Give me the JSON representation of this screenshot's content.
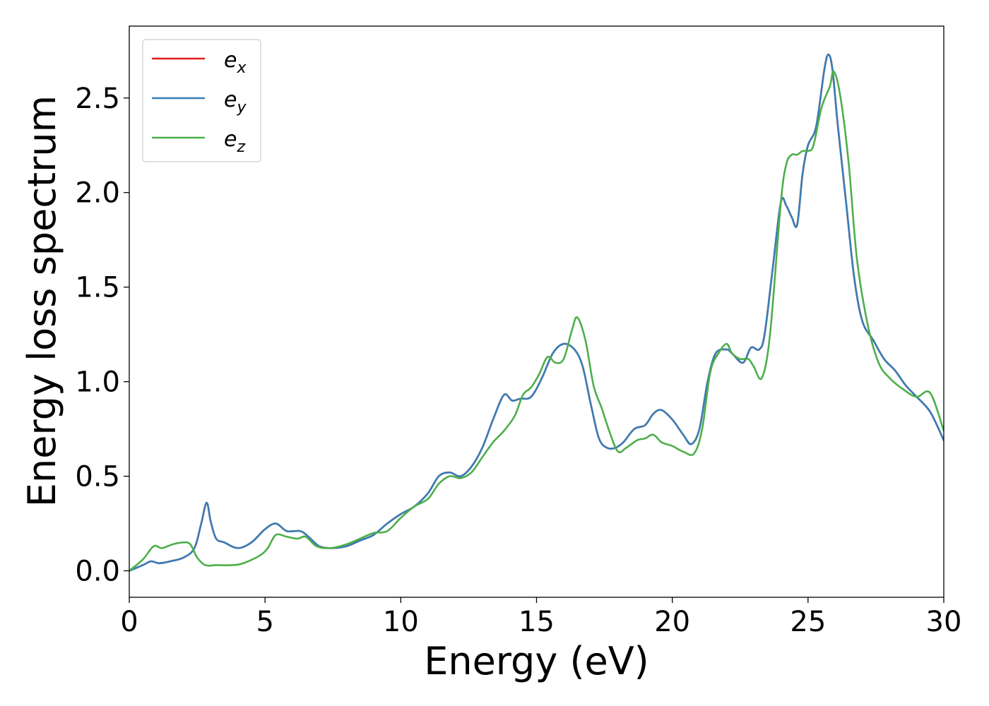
{
  "chart_data": {
    "type": "line",
    "xlabel": "Energy (eV)",
    "ylabel": "Energy loss spectrum",
    "xlim": [
      0,
      30
    ],
    "ylim": [
      -0.14,
      2.88
    ],
    "xticks": [
      0,
      5,
      10,
      15,
      20,
      25,
      30
    ],
    "yticks": [
      0.0,
      0.5,
      1.0,
      1.5,
      2.0,
      2.5
    ],
    "xtick_labels": [
      "0",
      "5",
      "10",
      "15",
      "20",
      "25",
      "30"
    ],
    "ytick_labels": [
      "0.0",
      "0.5",
      "1.0",
      "1.5",
      "2.0",
      "2.5"
    ],
    "grid": false,
    "legend_position": "upper-left",
    "series": [
      {
        "name": "e",
        "sub": "x",
        "color": "#e41a1c",
        "x": [
          0,
          0.5,
          0.8,
          1.1,
          1.5,
          2.0,
          2.4,
          2.65,
          2.85,
          3.0,
          3.2,
          3.5,
          4.0,
          4.5,
          5.0,
          5.4,
          5.8,
          6.3,
          6.6,
          7.0,
          7.5,
          8.0,
          8.5,
          9.0,
          9.5,
          10.0,
          10.5,
          11.0,
          11.4,
          11.8,
          12.2,
          12.6,
          13.0,
          13.4,
          13.8,
          14.1,
          14.4,
          14.8,
          15.2,
          15.6,
          16.0,
          16.4,
          16.7,
          17.0,
          17.3,
          17.6,
          17.9,
          18.2,
          18.6,
          19.0,
          19.3,
          19.6,
          20.0,
          20.4,
          20.7,
          21.0,
          21.3,
          21.6,
          22.0,
          22.2,
          22.6,
          22.9,
          23.2,
          23.4,
          23.7,
          24.0,
          24.2,
          24.4,
          24.6,
          24.8,
          25.0,
          25.3,
          25.6,
          25.75,
          25.9,
          26.1,
          26.4,
          26.7,
          27.0,
          27.4,
          27.8,
          28.2,
          28.6,
          29.0,
          29.5,
          30.0
        ],
        "y": [
          0.0,
          0.03,
          0.05,
          0.04,
          0.05,
          0.07,
          0.12,
          0.25,
          0.36,
          0.26,
          0.17,
          0.15,
          0.12,
          0.15,
          0.22,
          0.25,
          0.21,
          0.21,
          0.18,
          0.13,
          0.12,
          0.13,
          0.16,
          0.19,
          0.25,
          0.3,
          0.34,
          0.41,
          0.5,
          0.52,
          0.5,
          0.55,
          0.65,
          0.8,
          0.93,
          0.9,
          0.91,
          0.92,
          1.02,
          1.15,
          1.2,
          1.17,
          1.08,
          0.88,
          0.7,
          0.65,
          0.65,
          0.68,
          0.75,
          0.77,
          0.83,
          0.85,
          0.8,
          0.72,
          0.67,
          0.75,
          1.0,
          1.15,
          1.17,
          1.15,
          1.1,
          1.18,
          1.17,
          1.25,
          1.6,
          1.95,
          1.93,
          1.87,
          1.83,
          2.1,
          2.25,
          2.35,
          2.65,
          2.73,
          2.65,
          2.35,
          1.95,
          1.55,
          1.32,
          1.22,
          1.12,
          1.06,
          0.98,
          0.92,
          0.84,
          0.69
        ]
      },
      {
        "name": "e",
        "sub": "y",
        "color": "#377eb8",
        "x": [
          0,
          0.5,
          0.8,
          1.1,
          1.5,
          2.0,
          2.4,
          2.65,
          2.85,
          3.0,
          3.2,
          3.5,
          4.0,
          4.5,
          5.0,
          5.4,
          5.8,
          6.3,
          6.6,
          7.0,
          7.5,
          8.0,
          8.5,
          9.0,
          9.5,
          10.0,
          10.5,
          11.0,
          11.4,
          11.8,
          12.2,
          12.6,
          13.0,
          13.4,
          13.8,
          14.1,
          14.4,
          14.8,
          15.2,
          15.6,
          16.0,
          16.4,
          16.7,
          17.0,
          17.3,
          17.6,
          17.9,
          18.2,
          18.6,
          19.0,
          19.3,
          19.6,
          20.0,
          20.4,
          20.7,
          21.0,
          21.3,
          21.6,
          22.0,
          22.2,
          22.6,
          22.9,
          23.2,
          23.4,
          23.7,
          24.0,
          24.2,
          24.4,
          24.6,
          24.8,
          25.0,
          25.3,
          25.6,
          25.75,
          25.9,
          26.1,
          26.4,
          26.7,
          27.0,
          27.4,
          27.8,
          28.2,
          28.6,
          29.0,
          29.5,
          30.0
        ],
        "y": [
          0.0,
          0.03,
          0.05,
          0.04,
          0.05,
          0.07,
          0.12,
          0.25,
          0.36,
          0.26,
          0.17,
          0.15,
          0.12,
          0.15,
          0.22,
          0.25,
          0.21,
          0.21,
          0.18,
          0.13,
          0.12,
          0.13,
          0.16,
          0.19,
          0.25,
          0.3,
          0.34,
          0.41,
          0.5,
          0.52,
          0.5,
          0.55,
          0.65,
          0.8,
          0.93,
          0.9,
          0.91,
          0.92,
          1.02,
          1.15,
          1.2,
          1.17,
          1.08,
          0.88,
          0.7,
          0.65,
          0.65,
          0.68,
          0.75,
          0.77,
          0.83,
          0.85,
          0.8,
          0.72,
          0.67,
          0.75,
          1.0,
          1.15,
          1.17,
          1.15,
          1.1,
          1.18,
          1.17,
          1.25,
          1.6,
          1.95,
          1.93,
          1.87,
          1.83,
          2.1,
          2.25,
          2.35,
          2.65,
          2.73,
          2.65,
          2.35,
          1.95,
          1.55,
          1.32,
          1.22,
          1.12,
          1.06,
          0.98,
          0.92,
          0.84,
          0.69
        ]
      },
      {
        "name": "e",
        "sub": "z",
        "color": "#4daf4a",
        "x": [
          0,
          0.5,
          0.9,
          1.2,
          1.6,
          2.0,
          2.25,
          2.5,
          2.8,
          3.2,
          3.8,
          4.2,
          4.8,
          5.1,
          5.4,
          5.8,
          6.2,
          6.5,
          6.9,
          7.4,
          8.0,
          8.5,
          9.0,
          9.5,
          10.0,
          10.5,
          11.0,
          11.4,
          11.8,
          12.2,
          12.6,
          13.0,
          13.4,
          13.8,
          14.2,
          14.5,
          14.8,
          15.1,
          15.4,
          15.7,
          16.0,
          16.3,
          16.5,
          16.8,
          17.1,
          17.4,
          17.7,
          18.0,
          18.3,
          18.7,
          19.0,
          19.3,
          19.6,
          20.0,
          20.4,
          20.8,
          21.1,
          21.4,
          21.7,
          22.0,
          22.2,
          22.5,
          22.8,
          23.0,
          23.3,
          23.6,
          24.0,
          24.2,
          24.4,
          24.6,
          24.8,
          25.0,
          25.2,
          25.5,
          25.8,
          25.95,
          26.2,
          26.5,
          26.8,
          27.2,
          27.6,
          28.0,
          28.5,
          29.0,
          29.5,
          30.0
        ],
        "y": [
          0.0,
          0.06,
          0.13,
          0.12,
          0.14,
          0.15,
          0.14,
          0.07,
          0.03,
          0.03,
          0.03,
          0.04,
          0.08,
          0.12,
          0.19,
          0.18,
          0.17,
          0.18,
          0.13,
          0.12,
          0.14,
          0.17,
          0.2,
          0.21,
          0.28,
          0.34,
          0.38,
          0.46,
          0.5,
          0.49,
          0.52,
          0.6,
          0.68,
          0.74,
          0.82,
          0.93,
          0.97,
          1.04,
          1.13,
          1.1,
          1.12,
          1.27,
          1.34,
          1.22,
          0.98,
          0.86,
          0.73,
          0.63,
          0.65,
          0.69,
          0.7,
          0.72,
          0.68,
          0.66,
          0.63,
          0.62,
          0.75,
          1.05,
          1.15,
          1.2,
          1.15,
          1.12,
          1.12,
          1.08,
          1.02,
          1.25,
          1.95,
          2.15,
          2.2,
          2.2,
          2.22,
          2.22,
          2.25,
          2.45,
          2.56,
          2.64,
          2.5,
          2.15,
          1.65,
          1.3,
          1.1,
          1.02,
          0.96,
          0.92,
          0.94,
          0.74
        ]
      }
    ]
  }
}
